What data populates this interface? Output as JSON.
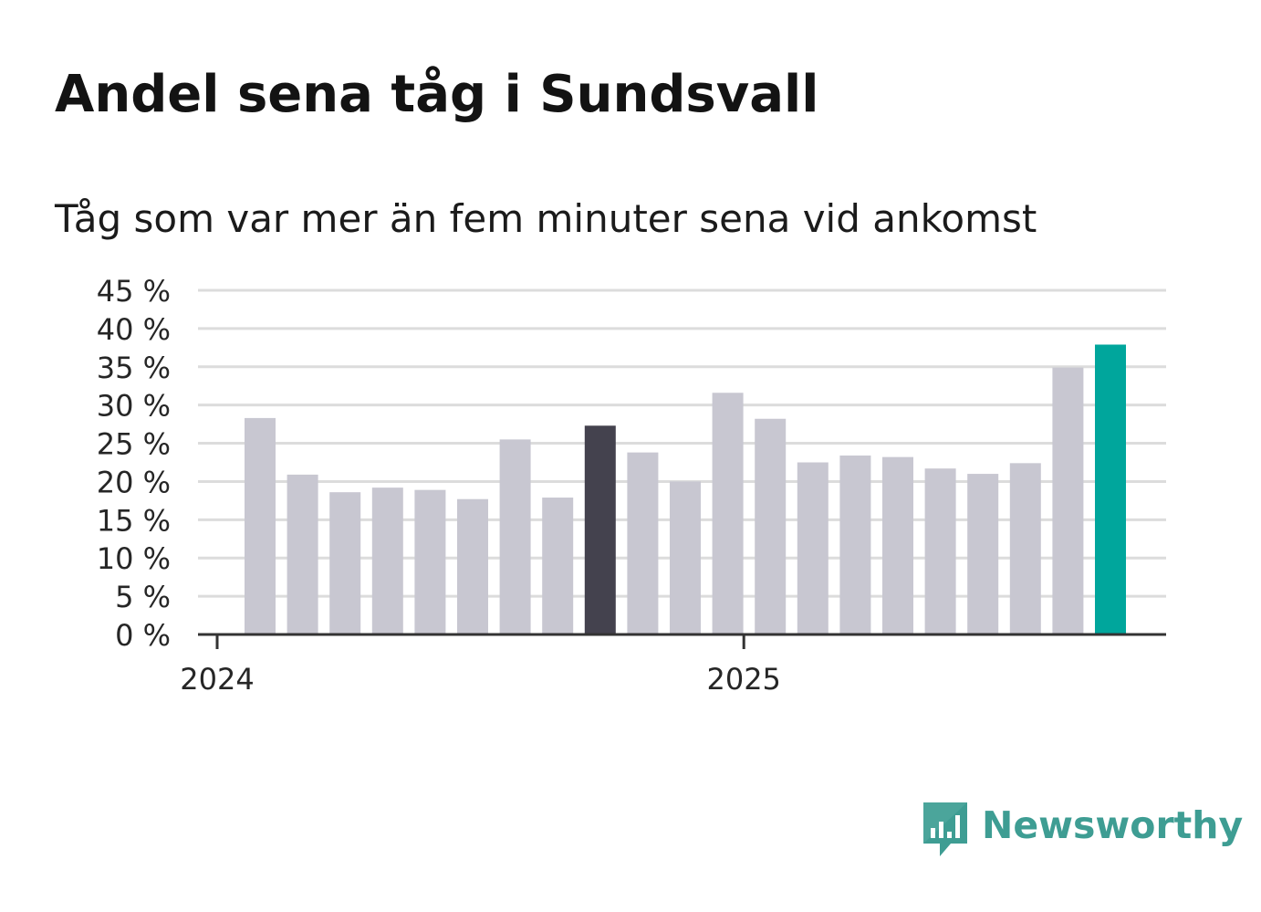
{
  "header": {
    "title": "Andel sena tåg i Sundsvall",
    "subtitle": "Tåg som var mer än fem minuter sena vid ankomst"
  },
  "logo": {
    "name": "Newsworthy",
    "icon": "newsworthy-bar-chart-icon"
  },
  "colors": {
    "bar_default": "#c8c7d1",
    "bar_highlight": "#44424e",
    "bar_latest": "#00a69c",
    "gridline": "#dcdcdc",
    "axis": "#333333",
    "logo": "#3e9d93"
  },
  "chart_data": {
    "type": "bar",
    "title": "Andel sena tåg i Sundsvall",
    "subtitle": "Tåg som var mer än fem minuter sena vid ankomst",
    "xlabel": "",
    "ylabel": "",
    "ylim": [
      0,
      45
    ],
    "y_ticks": [
      0,
      5,
      10,
      15,
      20,
      25,
      30,
      35,
      40,
      45
    ],
    "y_tick_suffix": " %",
    "grid": true,
    "x_tick_labels": [
      {
        "label": "2024",
        "position": 0
      },
      {
        "label": "2025",
        "position": 12
      }
    ],
    "categories": [
      "2024-01",
      "2024-02",
      "2024-03",
      "2024-04",
      "2024-05",
      "2024-06",
      "2024-07",
      "2024-08",
      "2024-09",
      "2024-10",
      "2024-11",
      "2024-12",
      "2025-01",
      "2025-02",
      "2025-03",
      "2025-04",
      "2025-05",
      "2025-06",
      "2025-07",
      "2025-08",
      "2025-09"
    ],
    "values": [
      28.3,
      20.9,
      18.6,
      19.2,
      18.9,
      17.7,
      25.5,
      17.9,
      27.3,
      23.8,
      20.0,
      31.6,
      28.2,
      22.5,
      23.4,
      23.2,
      21.7,
      21.0,
      22.4,
      34.9,
      37.9
    ],
    "highlight_index": 8,
    "latest_index": 20
  }
}
